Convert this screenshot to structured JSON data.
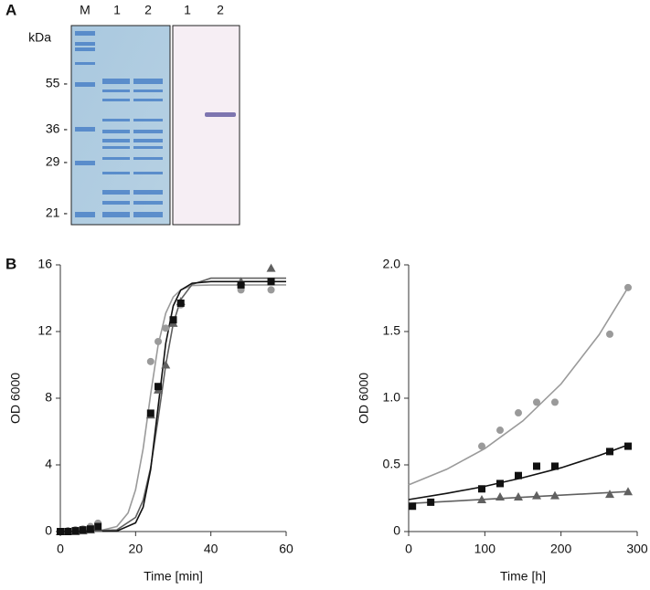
{
  "panel_a": {
    "label": "A",
    "unit": "kDa",
    "lanes": [
      "M",
      "1",
      "2",
      "1",
      "2"
    ],
    "markers": [
      {
        "value": 55,
        "label": "55 -"
      },
      {
        "value": 36,
        "label": "36 -"
      },
      {
        "value": 29,
        "label": "29 -"
      },
      {
        "value": 21,
        "label": "21 -"
      }
    ]
  },
  "panel_b_label": "B",
  "chart_data": [
    {
      "type": "scatter",
      "xlabel": "Time [min]",
      "ylabel": "OD 6000",
      "xlim": [
        0,
        60
      ],
      "xticks": [
        0,
        20,
        40,
        60
      ],
      "ylim": [
        0,
        16
      ],
      "yticks": [
        0,
        4,
        8,
        12,
        16
      ],
      "series": [
        {
          "color": "#9a9a9a",
          "marker": "circle",
          "x": [
            0,
            2,
            4,
            6,
            8,
            10,
            24,
            26,
            28,
            30,
            32,
            48,
            56
          ],
          "values": [
            0,
            0.05,
            0.1,
            0.15,
            0.3,
            0.5,
            10.2,
            11.4,
            12.2,
            12.6,
            13.6,
            14.5,
            14.5
          ]
        },
        {
          "color": "#606060",
          "marker": "triangle",
          "x": [
            0,
            2,
            4,
            6,
            8,
            10,
            24,
            26,
            28,
            30,
            32,
            48,
            56
          ],
          "values": [
            0,
            0,
            0,
            0.05,
            0.1,
            0.2,
            7,
            8.5,
            10,
            12.5,
            13.8,
            15,
            15.8
          ]
        },
        {
          "color": "#111111",
          "marker": "square",
          "x": [
            0,
            2,
            4,
            6,
            8,
            10,
            24,
            26,
            30,
            32,
            48,
            56
          ],
          "values": [
            0,
            0,
            0.05,
            0.1,
            0.15,
            0.3,
            7.1,
            8.7,
            12.7,
            13.7,
            14.8,
            15
          ]
        }
      ],
      "fits": [
        {
          "color": "#9a9a9a",
          "x": [
            0,
            10,
            15,
            18,
            20,
            22,
            24,
            26,
            28,
            30,
            32,
            35,
            40,
            60
          ],
          "values": [
            0,
            0.03,
            0.3,
            1.12,
            2.51,
            4.98,
            8.24,
            11.2,
            13.1,
            14.07,
            14.5,
            14.76,
            14.79,
            14.8
          ]
        },
        {
          "color": "#606060",
          "x": [
            0,
            15,
            20,
            22,
            24,
            26,
            28,
            30,
            32,
            35,
            40,
            60
          ],
          "values": [
            0,
            0.1,
            0.85,
            1.88,
            3.83,
            6.78,
            10,
            12.48,
            13.92,
            14.83,
            15.2,
            15.2
          ]
        },
        {
          "color": "#111111",
          "x": [
            0,
            15,
            20,
            22,
            24,
            26,
            28,
            30,
            32,
            35,
            40,
            60
          ],
          "values": [
            0,
            0.03,
            0.52,
            1.47,
            3.72,
            7.5,
            11.29,
            13.54,
            14.48,
            14.9,
            15,
            15
          ]
        }
      ]
    },
    {
      "type": "scatter",
      "xlabel": "Time [h]",
      "ylabel": "OD 6000",
      "xlim": [
        0,
        300
      ],
      "xticks": [
        0,
        100,
        200,
        300
      ],
      "ylim": [
        0,
        2
      ],
      "yticks": [
        0,
        0.5,
        {
          "value": 1,
          "label": "1.0"
        },
        1.5,
        {
          "value": 2,
          "label": "2.0"
        }
      ],
      "series": [
        {
          "color": "#9a9a9a",
          "marker": "circle",
          "x": [
            96,
            120,
            144,
            168,
            192,
            264,
            288
          ],
          "values": [
            0.64,
            0.76,
            0.89,
            0.97,
            0.97,
            1.48,
            1.83
          ]
        },
        {
          "color": "#111111",
          "marker": "square",
          "x": [
            5,
            29,
            96,
            120,
            144,
            168,
            192,
            264,
            288
          ],
          "values": [
            0.19,
            0.22,
            0.32,
            0.36,
            0.42,
            0.49,
            0.49,
            0.6,
            0.64
          ]
        },
        {
          "color": "#606060",
          "marker": "triangle",
          "x": [
            96,
            120,
            144,
            168,
            192,
            264,
            288
          ],
          "values": [
            0.24,
            0.26,
            0.26,
            0.27,
            0.27,
            0.28,
            0.3
          ]
        }
      ],
      "fits": [
        {
          "color": "#9a9a9a",
          "x": [
            0,
            50,
            100,
            150,
            200,
            250,
            288
          ],
          "values": [
            0.35,
            0.467,
            0.622,
            0.83,
            1.107,
            1.476,
            1.83
          ]
        },
        {
          "color": "#111111",
          "x": [
            0,
            50,
            100,
            150,
            200,
            250,
            288
          ],
          "values": [
            0.24,
            0.286,
            0.339,
            0.404,
            0.478,
            0.57,
            0.65
          ]
        },
        {
          "color": "#606060",
          "x": [
            0,
            288
          ],
          "values": [
            0.21,
            0.3
          ]
        }
      ]
    }
  ]
}
